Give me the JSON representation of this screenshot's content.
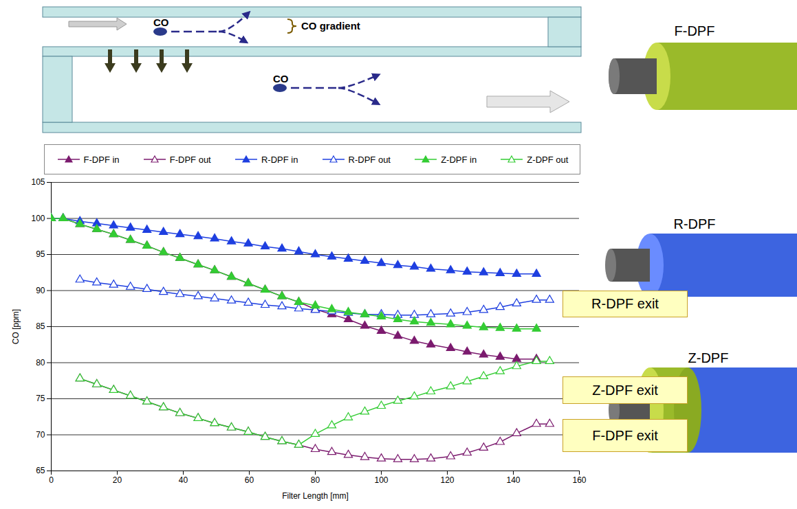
{
  "chart_data": {
    "type": "line",
    "x_label": "Filter Length [mm]",
    "y_label": "CO [ppm]",
    "xlim": [
      0,
      160
    ],
    "xticks": [
      0,
      20,
      40,
      60,
      80,
      100,
      120,
      140,
      160
    ],
    "ylim": [
      65,
      105
    ],
    "yticks": [
      65,
      70,
      75,
      80,
      85,
      90,
      95,
      100,
      105
    ],
    "grid": true,
    "legend": "top",
    "annotations": [
      "R-DPF exit",
      "Z-DPF exit",
      "F-DPF exit"
    ],
    "series": [
      {
        "name": "F-DPF in",
        "color": "#7B1A6E",
        "marker": "triangle",
        "line_style": "solid",
        "x": [
          0,
          3.6,
          8.7,
          13.8,
          18.9,
          24,
          29,
          34,
          39,
          44.5,
          49.5,
          54.6,
          59.7,
          64.8,
          69.9,
          75,
          80,
          85,
          90,
          95,
          100,
          105,
          110,
          115,
          121,
          126,
          131,
          136,
          141,
          147
        ],
        "values": [
          100,
          100,
          99.2,
          98.5,
          97.8,
          97,
          96.2,
          95.3,
          94.5,
          93.6,
          92.8,
          91.9,
          91,
          90.1,
          89.2,
          88.4,
          87.4,
          86.7,
          86,
          85.1,
          84.4,
          83.7,
          83,
          82.5,
          82,
          81.5,
          81.1,
          80.8,
          80.5,
          80.5
        ]
      },
      {
        "name": "F-DPF out",
        "color": "#7B1A6E",
        "marker": "triangle-open",
        "line_style": "solid",
        "x": [
          8.7,
          13.8,
          18.9,
          24,
          29,
          34,
          39,
          44.5,
          49.5,
          54.6,
          59.7,
          64.8,
          69.9,
          75,
          80,
          85,
          90,
          95,
          100,
          105,
          110,
          115,
          121,
          126,
          131,
          136,
          141,
          147,
          151
        ],
        "values": [
          77.8,
          77,
          76.2,
          75.4,
          74.6,
          73.8,
          73,
          72.3,
          71.6,
          71,
          70.4,
          69.7,
          69.1,
          68.6,
          68,
          67.6,
          67.2,
          66.9,
          66.7,
          66.6,
          66.6,
          66.7,
          67,
          67.5,
          68.2,
          69,
          70.2,
          71.5,
          71.5
        ]
      },
      {
        "name": "R-DPF in",
        "color": "#1E3FE0",
        "marker": "triangle",
        "line_style": "solid",
        "x": [
          0,
          3.6,
          8.7,
          13.8,
          18.9,
          24,
          29,
          34,
          39,
          44.5,
          49.5,
          54.6,
          59.7,
          64.8,
          69.9,
          75,
          80,
          85,
          90,
          95,
          100,
          105,
          110,
          115,
          121,
          126,
          131,
          136,
          141,
          147
        ],
        "values": [
          100,
          100,
          99.6,
          99.3,
          99,
          98.7,
          98.4,
          98.1,
          97.8,
          97.5,
          97.2,
          96.8,
          96.5,
          96.1,
          95.8,
          95.4,
          95,
          94.7,
          94.4,
          94.1,
          93.8,
          93.5,
          93.3,
          93,
          92.8,
          92.6,
          92.5,
          92.4,
          92.3,
          92.3
        ]
      },
      {
        "name": "R-DPF out",
        "color": "#1E3FE0",
        "marker": "triangle-open",
        "line_style": "solid",
        "x": [
          8.7,
          13.8,
          18.9,
          24,
          29,
          34,
          39,
          44.5,
          49.5,
          54.6,
          59.7,
          64.8,
          69.9,
          75,
          80,
          85,
          90,
          95,
          100,
          105,
          110,
          115,
          121,
          126,
          131,
          136,
          141,
          147,
          151
        ],
        "values": [
          91.5,
          91.1,
          90.8,
          90.5,
          90.2,
          89.8,
          89.5,
          89.2,
          88.9,
          88.6,
          88.3,
          88,
          87.8,
          87.5,
          87.3,
          87.1,
          86.9,
          86.7,
          86.7,
          86.6,
          86.6,
          86.7,
          86.8,
          87,
          87.3,
          87.7,
          88.2,
          88.7,
          88.7
        ]
      },
      {
        "name": "Z-DPF in",
        "color": "#33CC33",
        "marker": "triangle",
        "line_style": "solid",
        "x": [
          0,
          3.6,
          8.7,
          13.8,
          18.9,
          24,
          29,
          34,
          39,
          44.5,
          49.5,
          54.6,
          59.7,
          64.8,
          69.9,
          75,
          80,
          85,
          90,
          95,
          100,
          105,
          110,
          115,
          121,
          126,
          131,
          136,
          141,
          147
        ],
        "values": [
          100,
          100,
          99.2,
          98.5,
          97.8,
          97,
          96.2,
          95.3,
          94.5,
          93.6,
          92.8,
          91.9,
          91,
          90.1,
          89.2,
          88.4,
          87.9,
          87.4,
          87,
          86.7,
          86.4,
          86,
          85.7,
          85.5,
          85.3,
          85.1,
          84.9,
          84.8,
          84.7,
          84.7
        ]
      },
      {
        "name": "Z-DPF out",
        "color": "#33CC33",
        "marker": "triangle-open",
        "line_style": "solid",
        "x": [
          8.7,
          13.8,
          18.9,
          24,
          29,
          34,
          39,
          44.5,
          49.5,
          54.6,
          59.7,
          64.8,
          69.9,
          75,
          80,
          85,
          90,
          95,
          100,
          105,
          110,
          115,
          121,
          126,
          131,
          136,
          141,
          147,
          151
        ],
        "values": [
          77.8,
          77,
          76.2,
          75.4,
          74.6,
          73.8,
          73,
          72.3,
          71.6,
          71,
          70.4,
          69.7,
          69.1,
          68.6,
          70.1,
          71.3,
          72.4,
          73.2,
          74,
          74.7,
          75.3,
          76,
          76.7,
          77.4,
          78.1,
          78.8,
          79.5,
          80.2,
          80.2
        ]
      }
    ]
  },
  "diagram": {
    "particle_labels": [
      "CO",
      "CO"
    ],
    "gradient_label": "CO gradient",
    "filters": [
      "F-DPF",
      "R-DPF",
      "Z-DPF"
    ]
  }
}
